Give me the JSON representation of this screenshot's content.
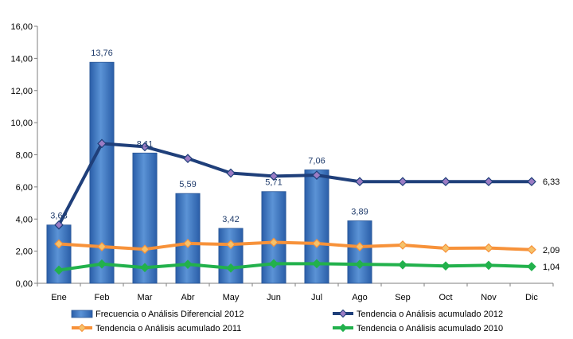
{
  "chart_data": {
    "type": "bar",
    "categories": [
      "Ene",
      "Feb",
      "Mar",
      "Abr",
      "May",
      "Jun",
      "Jul",
      "Ago",
      "Sep",
      "Oct",
      "Nov",
      "Dic"
    ],
    "ylim": [
      0,
      16
    ],
    "yticks": [
      "0,00",
      "2,00",
      "4,00",
      "6,00",
      "8,00",
      "10,00",
      "12,00",
      "14,00",
      "16,00"
    ],
    "ytick_values": [
      0,
      2,
      4,
      6,
      8,
      10,
      12,
      14,
      16
    ],
    "bar_series": {
      "name": "Frecuencia o Análisis Diferencial 2012",
      "values": [
        3.63,
        13.76,
        8.11,
        5.59,
        3.42,
        5.71,
        7.06,
        3.89
      ],
      "labels": [
        "3,63",
        "13,76",
        "8,11",
        "5,59",
        "3,42",
        "5,71",
        "7,06",
        "3,89"
      ],
      "color": "#3f76c0"
    },
    "line_series": [
      {
        "name": "Tendencia o Análisis acumulado 2012",
        "values": [
          3.63,
          8.7,
          8.5,
          7.77,
          6.86,
          6.67,
          6.73,
          6.33,
          6.33,
          6.33,
          6.33,
          6.33
        ],
        "color": "#1f3f7a",
        "marker_color": "#9b7cc4",
        "end_label": "6,33"
      },
      {
        "name": "Tendencia o Análisis acumulado 2011",
        "values": [
          2.45,
          2.28,
          2.12,
          2.48,
          2.42,
          2.55,
          2.48,
          2.28,
          2.38,
          2.18,
          2.2,
          2.09
        ],
        "color": "#f7923a",
        "marker_color": "#f5c26b",
        "end_label": "2,09"
      },
      {
        "name": "Tendencia o Análisis acumulado 2010",
        "values": [
          0.82,
          1.2,
          0.98,
          1.18,
          0.95,
          1.22,
          1.22,
          1.18,
          1.15,
          1.08,
          1.12,
          1.04
        ],
        "color": "#22b14c",
        "marker_color": "#22b14c",
        "end_label": "1,04"
      }
    ],
    "legend": [
      "Frecuencia o Análisis Diferencial 2012",
      "Tendencia o Análisis acumulado 2012",
      "Tendencia o Análisis acumulado 2011",
      "Tendencia o Análisis acumulado 2010"
    ],
    "grid": false,
    "legend_position": "bottom"
  }
}
